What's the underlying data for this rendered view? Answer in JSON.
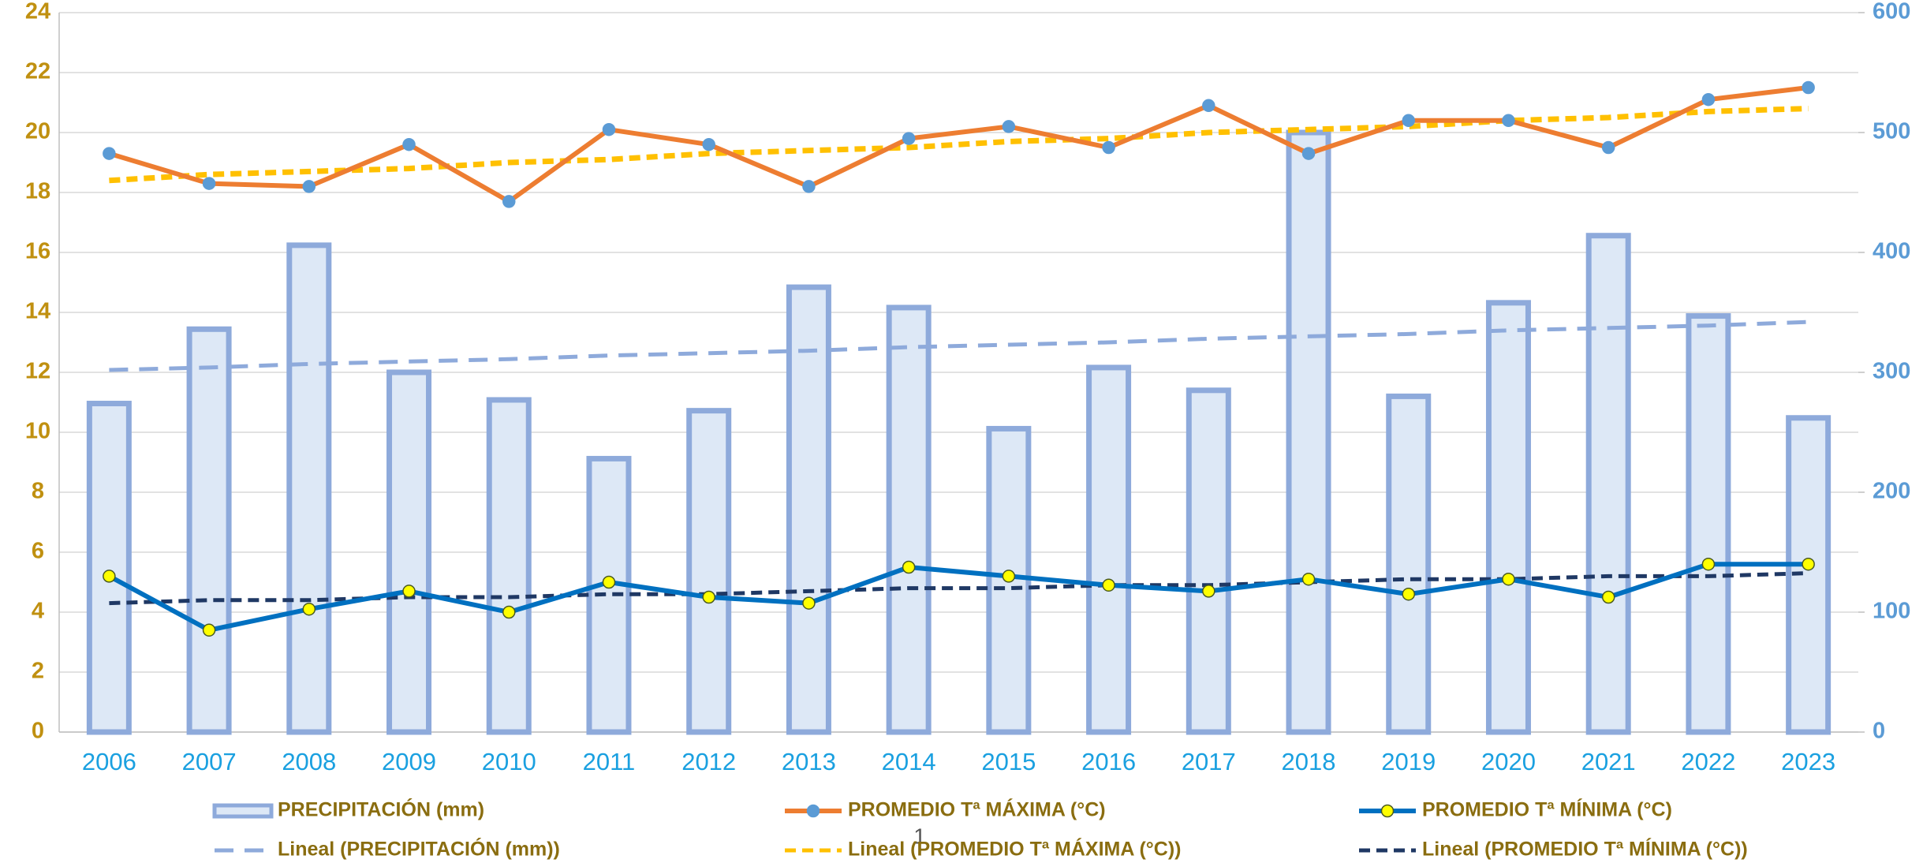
{
  "chart_data": {
    "type": "combo",
    "categories": [
      "2006",
      "2007",
      "2008",
      "2009",
      "2010",
      "2011",
      "2012",
      "2013",
      "2014",
      "2015",
      "2016",
      "2017",
      "2018",
      "2019",
      "2020",
      "2021",
      "2022",
      "2023"
    ],
    "ylim": [
      0,
      24
    ],
    "yticks": [
      0,
      2,
      4,
      6,
      8,
      10,
      12,
      14,
      16,
      18,
      20,
      22,
      24
    ],
    "y2lim": [
      0,
      600
    ],
    "y2ticks": [
      0,
      100,
      200,
      300,
      400,
      500,
      600
    ],
    "grid": true,
    "legend": "bottom",
    "series": [
      {
        "name": "PRECIPITACIÓN (mm)",
        "type": "bar",
        "axis": "y2",
        "color": "#8eaadb",
        "fill": "#dde8f6",
        "values": [
          274,
          336,
          406,
          300,
          277,
          228,
          268,
          371,
          354,
          253,
          304,
          285,
          500,
          280,
          358,
          414,
          347,
          262
        ]
      },
      {
        "name": "PROMEDIO Tª MÁXIMA (°C)",
        "type": "line",
        "color": "#ed7d31",
        "marker": "#5b9bd5",
        "values": [
          19.3,
          18.3,
          18.2,
          19.6,
          17.7,
          20.1,
          19.6,
          18.2,
          19.8,
          20.2,
          19.5,
          20.9,
          19.3,
          20.4,
          20.4,
          19.5,
          21.1,
          21.5
        ]
      },
      {
        "name": "PROMEDIO Tª MÍNIMA (°C)",
        "type": "line",
        "color": "#0070c0",
        "marker": "#ffff00",
        "values": [
          5.2,
          3.4,
          4.1,
          4.7,
          4.0,
          5.0,
          4.5,
          4.3,
          5.5,
          5.2,
          4.9,
          4.7,
          5.1,
          4.6,
          5.1,
          4.5,
          5.6,
          5.6
        ]
      },
      {
        "name": "Lineal (PRECIPITACIÓN (mm))",
        "type": "trend",
        "axis": "y2",
        "color": "#8eaadb",
        "values": [
          302,
          304,
          307,
          309,
          311,
          314,
          316,
          318,
          321,
          323,
          325,
          328,
          330,
          332,
          335,
          337,
          339,
          342
        ]
      },
      {
        "name": "Lineal (PROMEDIO Tª MÁXIMA (°C))",
        "type": "trend",
        "color": "#ffc000",
        "values": [
          18.4,
          18.6,
          18.7,
          18.8,
          19.0,
          19.1,
          19.3,
          19.4,
          19.5,
          19.7,
          19.8,
          20.0,
          20.1,
          20.2,
          20.4,
          20.5,
          20.7,
          20.8
        ]
      },
      {
        "name": "Lineal (PROMEDIO Tª MÍNIMA (°C))",
        "type": "trend",
        "color": "#1f3864",
        "values": [
          4.3,
          4.4,
          4.4,
          4.5,
          4.5,
          4.6,
          4.6,
          4.7,
          4.8,
          4.8,
          4.9,
          4.9,
          5.0,
          5.1,
          5.1,
          5.2,
          5.2,
          5.3
        ]
      }
    ],
    "page_number": "1"
  }
}
